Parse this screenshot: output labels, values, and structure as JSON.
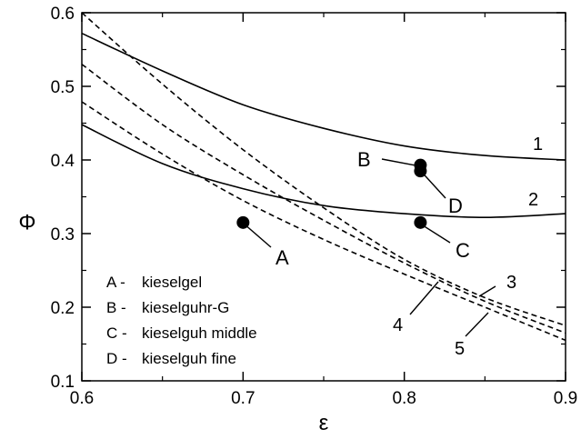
{
  "chart_data": {
    "type": "line",
    "title": "",
    "xlabel": "ε",
    "ylabel": "Φ",
    "xlim": [
      0.6,
      0.9
    ],
    "ylim": [
      0.1,
      0.6
    ],
    "grid": false,
    "x_ticks": [
      "0.6",
      "0.7",
      "0.8",
      "0.9"
    ],
    "y_ticks": [
      "0.1",
      "0.2",
      "0.3",
      "0.4",
      "0.5",
      "0.6"
    ],
    "series": [
      {
        "label": "1",
        "style": "solid",
        "x": [
          0.6,
          0.65,
          0.7,
          0.75,
          0.8,
          0.85,
          0.9
        ],
        "y": [
          0.572,
          0.521,
          0.475,
          0.443,
          0.419,
          0.406,
          0.4
        ]
      },
      {
        "label": "2",
        "style": "solid",
        "x": [
          0.6,
          0.65,
          0.7,
          0.75,
          0.8,
          0.85,
          0.9
        ],
        "y": [
          0.448,
          0.395,
          0.361,
          0.338,
          0.327,
          0.322,
          0.327
        ]
      },
      {
        "label": "3",
        "style": "dashed",
        "x": [
          0.6,
          0.65,
          0.7,
          0.75,
          0.8,
          0.85,
          0.9
        ],
        "y": [
          0.6,
          0.503,
          0.414,
          0.335,
          0.265,
          0.213,
          0.175
        ]
      },
      {
        "label": "4",
        "style": "dashed",
        "x": [
          0.6,
          0.65,
          0.7,
          0.75,
          0.8,
          0.85,
          0.9
        ],
        "y": [
          0.479,
          0.408,
          0.345,
          0.292,
          0.245,
          0.2,
          0.155
        ]
      },
      {
        "label": "5",
        "style": "dashed",
        "x": [
          0.6,
          0.65,
          0.7,
          0.75,
          0.8,
          0.85,
          0.9
        ],
        "y": [
          0.53,
          0.448,
          0.38,
          0.318,
          0.26,
          0.208,
          0.165
        ]
      }
    ],
    "points": [
      {
        "label": "A",
        "x": 0.7,
        "y": 0.315
      },
      {
        "label": "B",
        "x": 0.81,
        "y": 0.393
      },
      {
        "label": "C",
        "x": 0.81,
        "y": 0.315
      },
      {
        "label": "D",
        "x": 0.81,
        "y": 0.385
      }
    ],
    "legend": [
      {
        "key": "A -",
        "text": "kieselgel"
      },
      {
        "key": "B -",
        "text": "kieselguhr-G"
      },
      {
        "key": "C -",
        "text": "kieselguh middle"
      },
      {
        "key": "D -",
        "text": "kieselguh fine"
      }
    ],
    "legend_position": "bottom-left"
  }
}
